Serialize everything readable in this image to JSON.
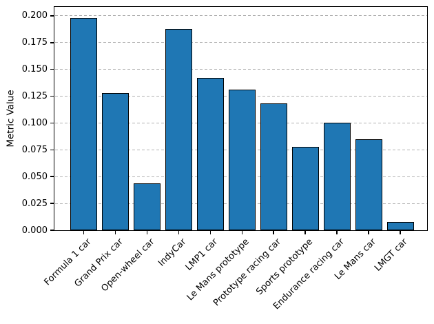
{
  "figure": {
    "background": "#ffffff"
  },
  "chart_data": {
    "type": "bar",
    "title": "",
    "xlabel": "",
    "ylabel": "Metric Value",
    "categories": [
      "Formula 1 car",
      "Grand Prix car",
      "Open-wheel car",
      "IndyCar",
      "LMP1 car",
      "Le Mans prototype",
      "Prototype racing car",
      "Sports prototype",
      "Endurance racing car",
      "Le Mans car",
      "LMGT car"
    ],
    "values": [
      0.198,
      0.128,
      0.044,
      0.188,
      0.142,
      0.131,
      0.118,
      0.078,
      0.1,
      0.085,
      0.008
    ],
    "ylim": [
      0,
      0.208
    ],
    "yticks": [
      "0.000",
      "0.025",
      "0.050",
      "0.075",
      "0.100",
      "0.125",
      "0.150",
      "0.175",
      "0.200"
    ],
    "grid": {
      "axis": "y",
      "style": "dashed",
      "color": "#b0b0b0"
    },
    "legend": "none",
    "bar_color": "#1f77b4",
    "bar_edge_color": "#000000",
    "x_tick_rotation_deg": 45
  }
}
